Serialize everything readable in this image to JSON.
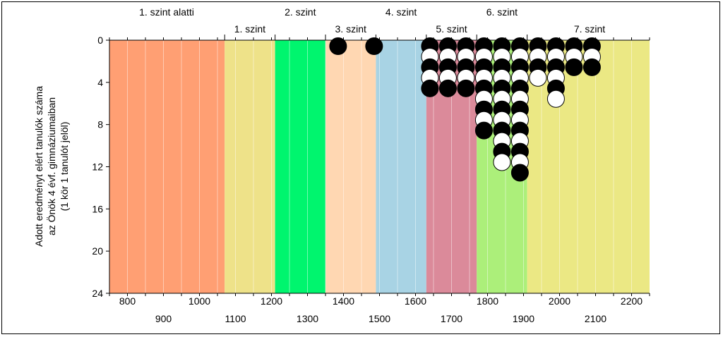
{
  "chart_data": {
    "type": "scatter",
    "ylabel_lines": [
      "Adott eredményt elért tanulók száma",
      "az Önök 4 évf. gimnáziumaiban",
      "(1 kör 1 tanulót jelöl)"
    ],
    "xlim": [
      750,
      2250
    ],
    "ylim": [
      0,
      24
    ],
    "y_inverted": true,
    "x_ticks_top_row": [
      800,
      1000,
      1200,
      1400,
      1600,
      1800,
      2000,
      2200
    ],
    "x_ticks_bottom_row": [
      900,
      1100,
      1300,
      1500,
      1700,
      1900,
      2100
    ],
    "y_ticks": [
      0,
      4,
      8,
      12,
      16,
      20,
      24
    ],
    "bands": [
      {
        "label": "1. szint alatti",
        "from": 750,
        "to": 1070,
        "color": "#FF9F73",
        "label_row": "upper"
      },
      {
        "label": "1. szint",
        "from": 1070,
        "to": 1210,
        "color": "#EEE289",
        "label_row": "lower"
      },
      {
        "label": "2. szint",
        "from": 1210,
        "to": 1350,
        "color": "#00F56E",
        "label_row": "upper"
      },
      {
        "label": "3. szint",
        "from": 1350,
        "to": 1490,
        "color": "#FFD7B2",
        "label_row": "lower"
      },
      {
        "label": "4. szint",
        "from": 1490,
        "to": 1630,
        "color": "#A8D3E4",
        "label_row": "upper"
      },
      {
        "label": "5. szint",
        "from": 1630,
        "to": 1770,
        "color": "#DB8A9A",
        "label_row": "lower"
      },
      {
        "label": "6. szint",
        "from": 1770,
        "to": 1910,
        "color": "#ACEF7A",
        "label_row": "upper"
      },
      {
        "label": "7. szint",
        "from": 1910,
        "to": 2250,
        "color": "#EBE884",
        "label_row": "lower"
      }
    ],
    "columns": [
      {
        "x": 1385,
        "count": 1
      },
      {
        "x": 1485,
        "count": 1
      },
      {
        "x": 1640,
        "count": 5
      },
      {
        "x": 1690,
        "count": 5
      },
      {
        "x": 1740,
        "count": 5
      },
      {
        "x": 1790,
        "count": 9
      },
      {
        "x": 1840,
        "count": 12
      },
      {
        "x": 1890,
        "count": 13
      },
      {
        "x": 1940,
        "count": 4
      },
      {
        "x": 1990,
        "count": 6
      },
      {
        "x": 2040,
        "count": 3
      },
      {
        "x": 2090,
        "count": 3
      }
    ],
    "circle_colors": {
      "filled": "#000000",
      "empty": "#ffffff"
    }
  }
}
